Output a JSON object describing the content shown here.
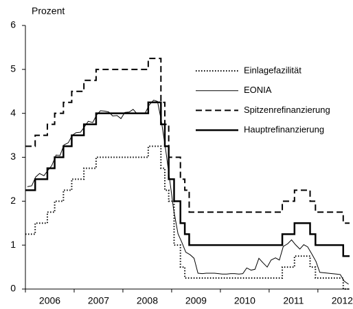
{
  "chart_data": {
    "type": "line",
    "y_label": "Prozent",
    "xlim": [
      2006.0,
      2012.65
    ],
    "xticks": [
      2006,
      2007,
      2008,
      2009,
      2010,
      2011,
      2012
    ],
    "ylim": [
      0,
      6
    ],
    "yticks": [
      0,
      1,
      2,
      3,
      4,
      5,
      6
    ],
    "grid": false,
    "legend_position": "right",
    "series": [
      {
        "name": "Einlagefazilität",
        "color": "#000000",
        "line_style": "dotted",
        "line_width": 2,
        "x": [
          2006.0,
          2006.2,
          2006.2,
          2006.45,
          2006.45,
          2006.6,
          2006.6,
          2006.78,
          2006.78,
          2006.95,
          2006.95,
          2007.2,
          2007.2,
          2007.45,
          2007.45,
          2008.52,
          2008.52,
          2008.78,
          2008.78,
          2008.86,
          2008.86,
          2008.94,
          2008.94,
          2009.05,
          2009.05,
          2009.18,
          2009.18,
          2009.27,
          2009.27,
          2011.27,
          2011.27,
          2011.52,
          2011.52,
          2011.84,
          2011.84,
          2011.95,
          2011.95,
          2012.52,
          2012.52,
          2012.65
        ],
        "values": [
          1.25,
          1.25,
          1.5,
          1.5,
          1.75,
          1.75,
          2.0,
          2.0,
          2.25,
          2.25,
          2.5,
          2.5,
          2.75,
          2.75,
          3.0,
          3.0,
          3.25,
          3.25,
          2.75,
          2.75,
          2.25,
          2.25,
          2.0,
          2.0,
          1.0,
          1.0,
          0.5,
          0.5,
          0.25,
          0.25,
          0.5,
          0.5,
          0.75,
          0.75,
          0.5,
          0.5,
          0.25,
          0.25,
          0.0,
          0.0
        ]
      },
      {
        "name": "EONIA",
        "color": "#000000",
        "line_style": "solid",
        "line_width": 1,
        "x": [
          2006.04,
          2006.13,
          2006.21,
          2006.29,
          2006.38,
          2006.46,
          2006.54,
          2006.63,
          2006.71,
          2006.79,
          2006.88,
          2006.96,
          2007.04,
          2007.13,
          2007.21,
          2007.29,
          2007.38,
          2007.46,
          2007.54,
          2007.63,
          2007.71,
          2007.79,
          2007.88,
          2007.96,
          2008.04,
          2008.13,
          2008.21,
          2008.29,
          2008.38,
          2008.46,
          2008.54,
          2008.63,
          2008.71,
          2008.79,
          2008.88,
          2008.96,
          2009.04,
          2009.13,
          2009.21,
          2009.29,
          2009.38,
          2009.46,
          2009.54,
          2009.63,
          2009.71,
          2009.79,
          2009.88,
          2009.96,
          2010.04,
          2010.13,
          2010.21,
          2010.29,
          2010.38,
          2010.46,
          2010.54,
          2010.63,
          2010.71,
          2010.79,
          2010.88,
          2010.96,
          2011.04,
          2011.13,
          2011.21,
          2011.29,
          2011.38,
          2011.46,
          2011.54,
          2011.63,
          2011.71,
          2011.79,
          2011.88,
          2011.96,
          2012.04,
          2012.13,
          2012.21,
          2012.29,
          2012.38,
          2012.46,
          2012.54,
          2012.63
        ],
        "values": [
          2.33,
          2.35,
          2.55,
          2.63,
          2.58,
          2.7,
          2.81,
          3.05,
          3.04,
          3.28,
          3.33,
          3.5,
          3.56,
          3.57,
          3.69,
          3.82,
          3.79,
          3.96,
          4.06,
          4.05,
          4.03,
          3.94,
          3.95,
          3.88,
          4.02,
          4.03,
          4.09,
          3.99,
          4.01,
          4.01,
          4.19,
          4.3,
          4.27,
          3.82,
          3.15,
          2.49,
          1.81,
          1.26,
          1.06,
          0.84,
          0.78,
          0.7,
          0.36,
          0.35,
          0.36,
          0.36,
          0.36,
          0.35,
          0.34,
          0.34,
          0.35,
          0.35,
          0.34,
          0.35,
          0.48,
          0.43,
          0.45,
          0.7,
          0.59,
          0.5,
          0.66,
          0.71,
          0.66,
          0.97,
          1.03,
          1.12,
          1.01,
          0.91,
          1.01,
          0.96,
          0.79,
          0.63,
          0.38,
          0.37,
          0.36,
          0.35,
          0.34,
          0.33,
          0.18,
          0.11
        ]
      },
      {
        "name": "Spitzenrefinanzierung",
        "color": "#000000",
        "line_style": "dashed",
        "line_width": 2,
        "x": [
          2006.0,
          2006.2,
          2006.2,
          2006.45,
          2006.45,
          2006.6,
          2006.6,
          2006.78,
          2006.78,
          2006.95,
          2006.95,
          2007.2,
          2007.2,
          2007.45,
          2007.45,
          2008.52,
          2008.52,
          2008.78,
          2008.78,
          2008.86,
          2008.86,
          2008.94,
          2008.94,
          2009.18,
          2009.18,
          2009.27,
          2009.27,
          2009.36,
          2009.36,
          2011.27,
          2011.27,
          2011.52,
          2011.52,
          2011.84,
          2011.84,
          2011.95,
          2011.95,
          2012.52,
          2012.52,
          2012.65
        ],
        "values": [
          3.25,
          3.25,
          3.5,
          3.5,
          3.75,
          3.75,
          4.0,
          4.0,
          4.25,
          4.25,
          4.5,
          4.5,
          4.75,
          4.75,
          5.0,
          5.0,
          5.25,
          5.25,
          4.25,
          4.25,
          3.75,
          3.75,
          3.0,
          3.0,
          2.5,
          2.5,
          2.25,
          2.25,
          1.75,
          1.75,
          2.0,
          2.0,
          2.25,
          2.25,
          2.0,
          2.0,
          1.75,
          1.75,
          1.5,
          1.5
        ]
      },
      {
        "name": "Hauptrefinanzierung",
        "color": "#000000",
        "line_style": "solid",
        "line_width": 2.5,
        "x": [
          2006.0,
          2006.2,
          2006.2,
          2006.45,
          2006.45,
          2006.6,
          2006.6,
          2006.78,
          2006.78,
          2006.95,
          2006.95,
          2007.2,
          2007.2,
          2007.45,
          2007.45,
          2008.52,
          2008.52,
          2008.78,
          2008.78,
          2008.86,
          2008.86,
          2008.94,
          2008.94,
          2009.05,
          2009.05,
          2009.18,
          2009.18,
          2009.27,
          2009.27,
          2009.36,
          2009.36,
          2011.27,
          2011.27,
          2011.52,
          2011.52,
          2011.84,
          2011.84,
          2011.95,
          2011.95,
          2012.52,
          2012.52,
          2012.65
        ],
        "values": [
          2.25,
          2.25,
          2.5,
          2.5,
          2.75,
          2.75,
          3.0,
          3.0,
          3.25,
          3.25,
          3.5,
          3.5,
          3.75,
          3.75,
          4.0,
          4.0,
          4.25,
          4.25,
          3.75,
          3.75,
          3.25,
          3.25,
          2.5,
          2.5,
          2.0,
          2.0,
          1.5,
          1.5,
          1.25,
          1.25,
          1.0,
          1.0,
          1.25,
          1.25,
          1.5,
          1.5,
          1.25,
          1.25,
          1.0,
          1.0,
          0.75,
          0.75
        ]
      }
    ]
  }
}
